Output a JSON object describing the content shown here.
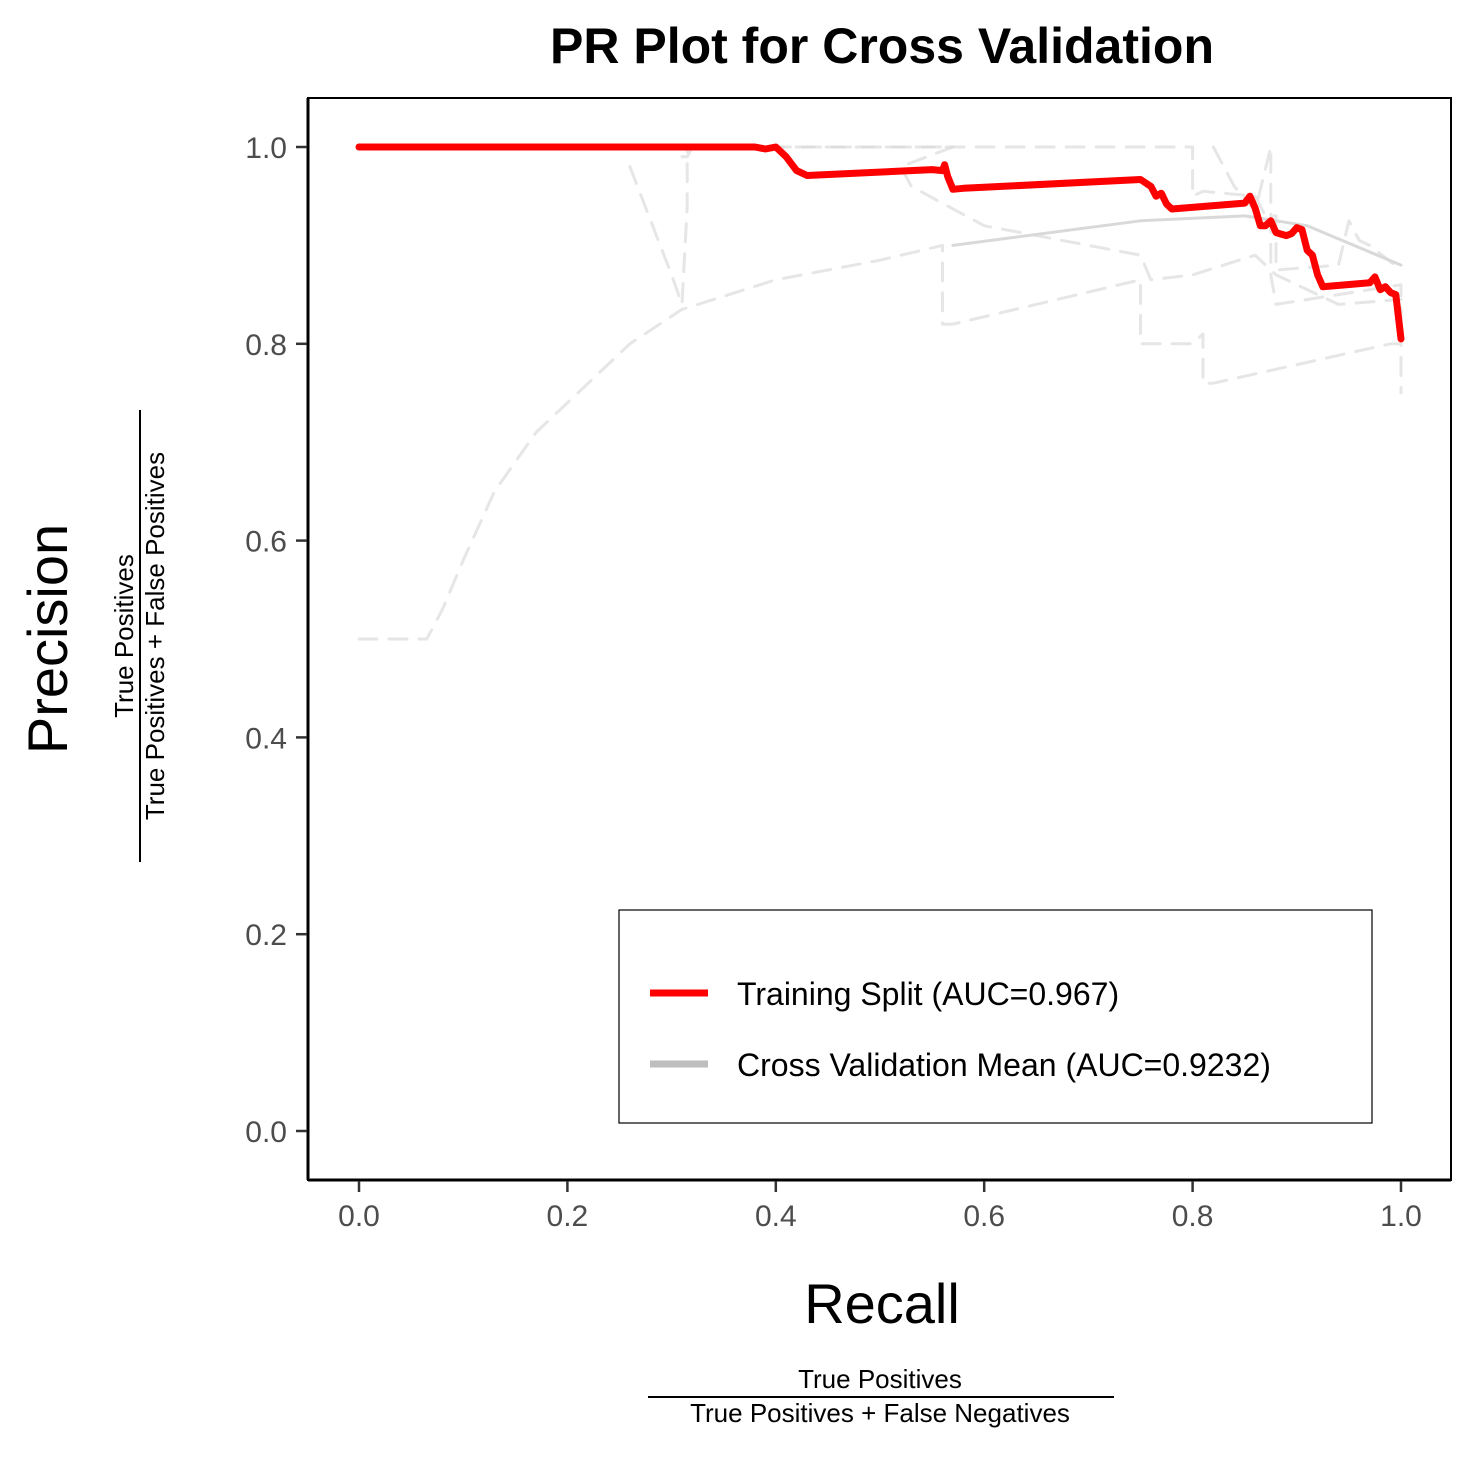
{
  "chart_data": {
    "type": "line",
    "title": "PR Plot for Cross Validation",
    "xlabel": "Recall",
    "ylabel": "Precision",
    "xlabel_formula": {
      "numerator": "True Positives",
      "denominator": "True Positives +  False Negatives"
    },
    "ylabel_formula": {
      "numerator": "True Positives",
      "denominator": "True Positives +  False Positives"
    },
    "xlim": [
      -0.05,
      1.05
    ],
    "ylim": [
      -0.05,
      1.05
    ],
    "x_ticks": [
      "0.0",
      "0.2",
      "0.4",
      "0.6",
      "0.8",
      "1.0"
    ],
    "y_ticks": [
      "0.0",
      "0.2",
      "0.4",
      "0.6",
      "0.8",
      "1.0"
    ],
    "grid": false,
    "legend_position": "bottom-right",
    "legend": [
      {
        "label": "Training Split (AUC=0.967)",
        "color": "#ff0000"
      },
      {
        "label": "Cross Validation Mean (AUC=0.9232)",
        "color": "#bebebe"
      }
    ],
    "series": [
      {
        "name": "Training Split (AUC=0.967)",
        "color": "#ff0000",
        "style": "solid",
        "points": [
          [
            0.0,
            1.0
          ],
          [
            0.38,
            1.0
          ],
          [
            0.39,
            0.998
          ],
          [
            0.4,
            1.0
          ],
          [
            0.41,
            0.99
          ],
          [
            0.42,
            0.976
          ],
          [
            0.43,
            0.971
          ],
          [
            0.55,
            0.977
          ],
          [
            0.56,
            0.976
          ],
          [
            0.562,
            0.982
          ],
          [
            0.565,
            0.97
          ],
          [
            0.57,
            0.957
          ],
          [
            0.58,
            0.958
          ],
          [
            0.75,
            0.967
          ],
          [
            0.76,
            0.96
          ],
          [
            0.765,
            0.95
          ],
          [
            0.77,
            0.953
          ],
          [
            0.775,
            0.942
          ],
          [
            0.78,
            0.937
          ],
          [
            0.85,
            0.943
          ],
          [
            0.855,
            0.95
          ],
          [
            0.86,
            0.938
          ],
          [
            0.865,
            0.92
          ],
          [
            0.87,
            0.92
          ],
          [
            0.875,
            0.925
          ],
          [
            0.88,
            0.913
          ],
          [
            0.89,
            0.91
          ],
          [
            0.895,
            0.912
          ],
          [
            0.9,
            0.918
          ],
          [
            0.905,
            0.916
          ],
          [
            0.91,
            0.895
          ],
          [
            0.915,
            0.89
          ],
          [
            0.92,
            0.87
          ],
          [
            0.925,
            0.858
          ],
          [
            0.97,
            0.862
          ],
          [
            0.975,
            0.868
          ],
          [
            0.98,
            0.855
          ],
          [
            0.985,
            0.858
          ],
          [
            0.99,
            0.852
          ],
          [
            0.995,
            0.85
          ],
          [
            1.0,
            0.805
          ]
        ]
      },
      {
        "name": "Cross Validation Mean (AUC=0.9232)",
        "color": "#bebebe",
        "style": "solid",
        "points": [
          [
            0.57,
            0.9
          ],
          [
            0.75,
            0.925
          ],
          [
            0.85,
            0.93
          ],
          [
            0.91,
            0.92
          ],
          [
            1.0,
            0.88
          ]
        ]
      },
      {
        "color": "#bebebe",
        "style": "dashed",
        "points": [
          [
            0.0,
            0.5
          ],
          [
            0.065,
            0.5
          ],
          [
            0.08,
            0.53
          ],
          [
            0.1,
            0.58
          ],
          [
            0.13,
            0.65
          ],
          [
            0.17,
            0.71
          ],
          [
            0.22,
            0.76
          ],
          [
            0.26,
            0.8
          ],
          [
            0.31,
            0.835
          ],
          [
            0.4,
            0.865
          ],
          [
            0.5,
            0.885
          ],
          [
            0.56,
            0.9
          ],
          [
            0.56,
            0.82
          ],
          [
            0.57,
            0.82
          ],
          [
            0.75,
            0.865
          ],
          [
            0.75,
            0.8
          ],
          [
            0.8,
            0.8
          ],
          [
            0.81,
            0.81
          ],
          [
            0.81,
            0.76
          ],
          [
            0.82,
            0.76
          ],
          [
            0.99,
            0.8
          ],
          [
            1.0,
            0.8
          ],
          [
            1.0,
            0.75
          ]
        ]
      },
      {
        "color": "#bebebe",
        "style": "dashed",
        "points": [
          [
            0.26,
            0.98
          ],
          [
            0.3,
            0.87
          ],
          [
            0.31,
            0.84
          ],
          [
            0.315,
            0.94
          ],
          [
            0.315,
            1.0
          ],
          [
            0.57,
            1.0
          ],
          [
            0.52,
            0.98
          ],
          [
            0.53,
            0.96
          ],
          [
            0.6,
            0.92
          ],
          [
            0.75,
            0.89
          ],
          [
            0.76,
            0.865
          ],
          [
            0.8,
            0.87
          ],
          [
            0.86,
            0.89
          ],
          [
            0.88,
            0.87
          ],
          [
            0.94,
            0.84
          ],
          [
            1.0,
            0.845
          ]
        ]
      },
      {
        "color": "#bebebe",
        "style": "dashed",
        "points": [
          [
            0.31,
            0.99
          ],
          [
            0.315,
            0.99
          ],
          [
            0.32,
            1.0
          ],
          [
            0.8,
            1.0
          ],
          [
            0.8,
            0.95
          ],
          [
            0.81,
            0.955
          ],
          [
            0.86,
            0.95
          ],
          [
            0.87,
            0.93
          ],
          [
            0.88,
            0.93
          ],
          [
            0.88,
            0.875
          ],
          [
            0.94,
            0.88
          ],
          [
            0.95,
            0.925
          ],
          [
            0.96,
            0.905
          ],
          [
            0.97,
            0.9
          ],
          [
            1.0,
            0.875
          ]
        ]
      },
      {
        "color": "#bebebe",
        "style": "dashed",
        "points": [
          [
            0.82,
            1.0
          ],
          [
            0.84,
            0.96
          ],
          [
            0.86,
            0.935
          ],
          [
            0.875,
            1.0
          ],
          [
            0.875,
            0.87
          ],
          [
            0.88,
            0.84
          ],
          [
            0.94,
            0.85
          ],
          [
            1.0,
            0.86
          ],
          [
            1.0,
            0.82
          ]
        ]
      }
    ]
  }
}
